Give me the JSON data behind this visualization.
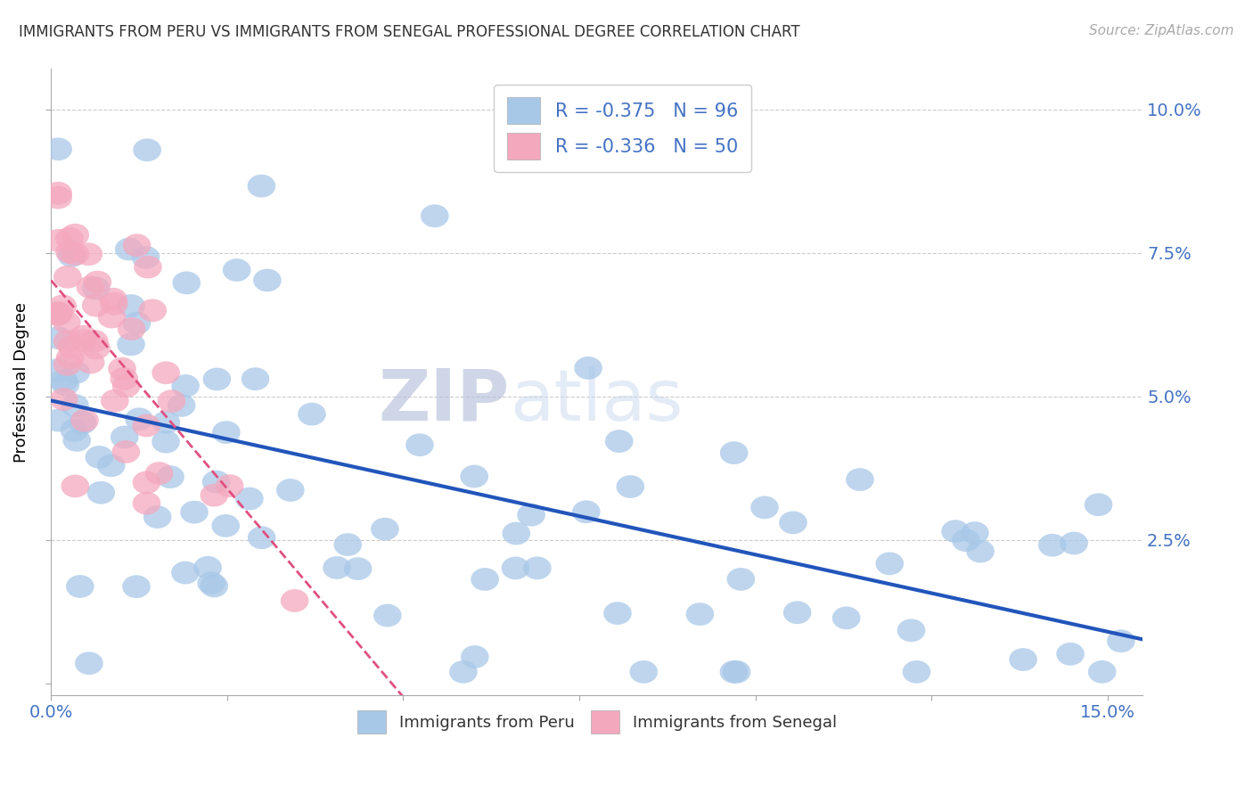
{
  "title": "IMMIGRANTS FROM PERU VS IMMIGRANTS FROM SENEGAL PROFESSIONAL DEGREE CORRELATION CHART",
  "source": "Source: ZipAtlas.com",
  "legend_peru": "Immigrants from Peru",
  "legend_senegal": "Immigrants from Senegal",
  "R_peru": -0.375,
  "N_peru": 96,
  "R_senegal": -0.336,
  "N_senegal": 50,
  "color_peru": "#a8c8e8",
  "color_senegal": "#f4a8be",
  "color_peru_line": "#2255bb",
  "color_senegal_line": "#e05080",
  "color_text_blue": "#4472C4",
  "xlim": [
    0.0,
    0.155
  ],
  "ylim": [
    -0.002,
    0.107
  ],
  "watermark_zip": "ZIP",
  "watermark_atlas": "atlas",
  "peru_intercept": 0.052,
  "peru_slope": -0.32,
  "senegal_intercept": 0.068,
  "senegal_slope": -1.35
}
